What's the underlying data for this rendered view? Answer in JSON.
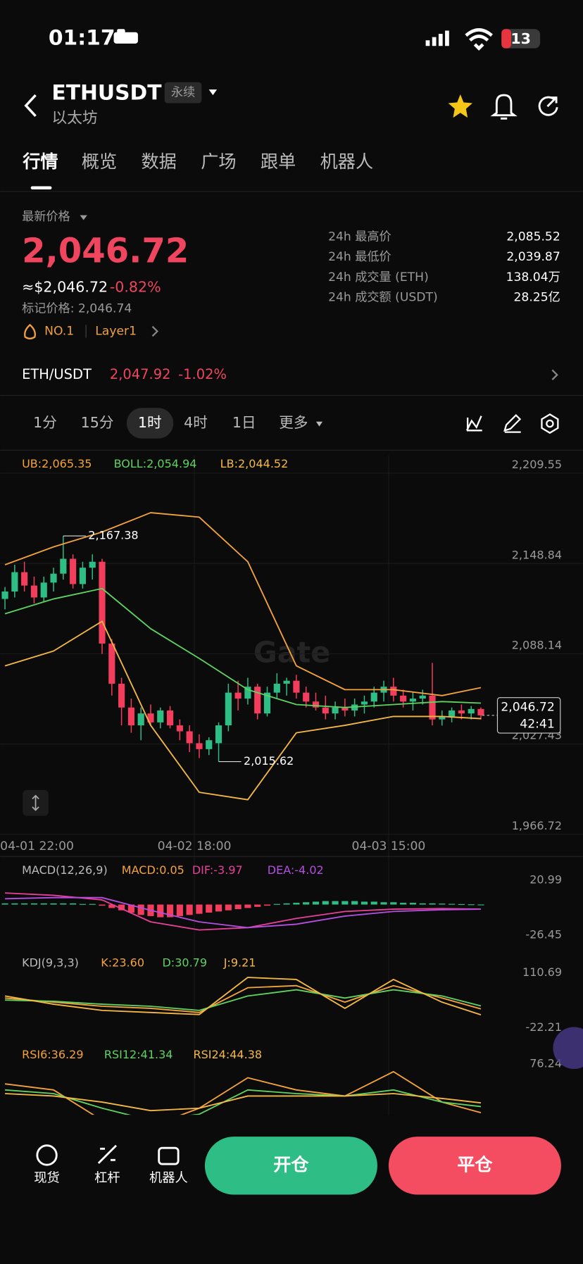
{
  "status": {
    "time": "01:17",
    "battery": "13"
  },
  "header": {
    "symbol": "ETHUSDT",
    "tag": "永续",
    "name": "以太坊"
  },
  "tabs": [
    "行情",
    "概览",
    "数据",
    "广场",
    "跟单",
    "机器人"
  ],
  "price": {
    "label": "最新价格",
    "last": "2,046.72",
    "usd": "≈$2,046.72",
    "change": "-0.82%",
    "mark": "标记价格: 2,046.74",
    "rank": "NO.1",
    "sector": "Layer1"
  },
  "stats": [
    {
      "label": "24h 最高价",
      "value": "2,085.52"
    },
    {
      "label": "24h 最低价",
      "value": "2,039.87"
    },
    {
      "label": "24h 成交量 (ETH)",
      "value": "138.04万"
    },
    {
      "label": "24h 成交额 (USDT)",
      "value": "28.25亿"
    }
  ],
  "spot": {
    "pair": "ETH/USDT",
    "price": "2,047.92",
    "change": "-1.02%"
  },
  "intervals": [
    "1分",
    "15分",
    "1时",
    "4时",
    "1日",
    "更多"
  ],
  "chart_data": {
    "type": "candlestick",
    "watermark": "Gate",
    "up_color": "#2ebd85",
    "down_color": "#f23d5c",
    "xlim": [
      0,
      60
    ],
    "xticks": [
      {
        "value": 0,
        "label": "04-01 22:00"
      },
      {
        "value": 20,
        "label": "04-02 18:00"
      },
      {
        "value": 40,
        "label": "04-03 15:00"
      }
    ],
    "ylim": [
      1966.72,
      2209.55
    ],
    "yticks": [
      {
        "value": 2209.55,
        "label": "2,209.55"
      },
      {
        "value": 2148.84,
        "label": "2,148.84"
      },
      {
        "value": 2088.14,
        "label": "2,088.14"
      },
      {
        "value": 2027.43,
        "label": "2,027.43"
      },
      {
        "value": 1966.72,
        "label": "1,966.72"
      }
    ],
    "grid": true,
    "candles": [
      [
        2125,
        2133,
        2118,
        2130
      ],
      [
        2130,
        2148,
        2126,
        2143
      ],
      [
        2143,
        2150,
        2130,
        2134
      ],
      [
        2134,
        2140,
        2122,
        2126
      ],
      [
        2126,
        2140,
        2123,
        2136
      ],
      [
        2136,
        2146,
        2130,
        2142
      ],
      [
        2142,
        2167.38,
        2138,
        2152
      ],
      [
        2152,
        2155,
        2132,
        2135
      ],
      [
        2135,
        2150,
        2132,
        2146
      ],
      [
        2146,
        2155,
        2138,
        2150
      ],
      [
        2150,
        2152,
        2088,
        2095
      ],
      [
        2095,
        2098,
        2060,
        2068
      ],
      [
        2068,
        2072,
        2040,
        2052
      ],
      [
        2052,
        2058,
        2035,
        2040
      ],
      [
        2040,
        2052,
        2030,
        2048
      ],
      [
        2048,
        2054,
        2040,
        2042
      ],
      [
        2042,
        2052,
        2038,
        2050
      ],
      [
        2050,
        2053,
        2038,
        2040
      ],
      [
        2040,
        2044,
        2030,
        2036
      ],
      [
        2036,
        2040,
        2022,
        2028
      ],
      [
        2028,
        2034,
        2018,
        2024
      ],
      [
        2024,
        2032,
        2020,
        2030
      ],
      [
        2028,
        2042,
        2015.62,
        2040
      ],
      [
        2040,
        2068,
        2036,
        2062
      ],
      [
        2062,
        2070,
        2050,
        2058
      ],
      [
        2058,
        2072,
        2054,
        2066
      ],
      [
        2066,
        2068,
        2044,
        2048
      ],
      [
        2048,
        2066,
        2046,
        2062
      ],
      [
        2062,
        2075,
        2058,
        2068
      ],
      [
        2068,
        2072,
        2060,
        2070
      ],
      [
        2070,
        2074,
        2058,
        2062
      ],
      [
        2062,
        2066,
        2052,
        2056
      ],
      [
        2056,
        2062,
        2050,
        2052
      ],
      [
        2052,
        2060,
        2044,
        2048
      ],
      [
        2048,
        2056,
        2044,
        2052
      ],
      [
        2052,
        2058,
        2046,
        2050
      ],
      [
        2050,
        2058,
        2046,
        2054
      ],
      [
        2054,
        2060,
        2048,
        2056
      ],
      [
        2056,
        2066,
        2052,
        2062
      ],
      [
        2062,
        2070,
        2056,
        2066
      ],
      [
        2066,
        2072,
        2056,
        2060
      ],
      [
        2060,
        2064,
        2052,
        2056
      ],
      [
        2056,
        2062,
        2050,
        2058
      ],
      [
        2058,
        2064,
        2054,
        2060
      ],
      [
        2060,
        2082,
        2040,
        2044
      ],
      [
        2044,
        2050,
        2039.87,
        2046
      ],
      [
        2046,
        2052,
        2042,
        2050
      ],
      [
        2050,
        2054,
        2044,
        2048
      ],
      [
        2048,
        2053,
        2044,
        2051
      ],
      [
        2051,
        2052,
        2044,
        2046.72
      ]
    ],
    "overlay_x": [
      0,
      5,
      10,
      15,
      20,
      25,
      30,
      35,
      40,
      45,
      49
    ],
    "overlays": [
      {
        "label": "UB:2,065.35",
        "color": "#f5a33a",
        "values": [
          2148,
          2160,
          2170,
          2183,
          2180,
          2150,
          2080,
          2064,
          2064,
          2060,
          2065.35
        ]
      },
      {
        "label": "BOLL:2,054.94",
        "color": "#5fd35f",
        "values": [
          2115,
          2125,
          2132,
          2105,
          2085,
          2064,
          2054,
          2052,
          2054,
          2056,
          2054.94
        ]
      },
      {
        "label": "LB:2,044.52",
        "color": "#f5b942",
        "values": [
          2080,
          2090,
          2110,
          2040,
          1995,
          1990,
          2035,
          2040,
          2046,
          2046,
          2044.52
        ]
      }
    ],
    "annotations": [
      {
        "candle": 6,
        "value": 2167.38,
        "label": "2,167.38"
      },
      {
        "candle": 22,
        "value": 2015.62,
        "label": "2,015.62"
      }
    ],
    "last_price": {
      "value": 2046.72,
      "label": "2,046.72",
      "countdown": "42:41"
    },
    "indicator_x": [
      0,
      5,
      10,
      15,
      20,
      25,
      30,
      35,
      40,
      45,
      49
    ],
    "indicators": [
      {
        "title": "MACD(12,26,9)",
        "ylim": [
          -26.45,
          20.99
        ],
        "yticks": [
          20.99,
          -26.45
        ],
        "histogram": {
          "label": "MACD:0.05",
          "color": "#f5a33a",
          "values": [
            1,
            1,
            1,
            1,
            1,
            1,
            1,
            1,
            0.5,
            0.5,
            -1,
            -3,
            -5,
            -7,
            -9,
            -10,
            -11,
            -11,
            -10,
            -9,
            -8,
            -7,
            -6,
            -5,
            -4,
            -3,
            -2,
            -1,
            0.5,
            1,
            1.5,
            2,
            2.5,
            3,
            3,
            3,
            3,
            2.5,
            2.5,
            2,
            2,
            1.5,
            1.5,
            1,
            1,
            0.8,
            0.6,
            0.4,
            0.2,
            0.05
          ]
        },
        "series": [
          {
            "label": "DIF:-3.97",
            "color": "#e8409a",
            "values": [
              10,
              8,
              4,
              -15,
              -22,
              -20,
              -12,
              -6,
              -4,
              -3.5,
              -3.97
            ]
          },
          {
            "label": "DEA:-4.02",
            "color": "#b44ee0",
            "values": [
              5,
              6,
              6,
              -5,
              -15,
              -20,
              -17,
              -10,
              -6,
              -4.5,
              -4.02
            ]
          }
        ]
      },
      {
        "title": "KDJ(9,3,3)",
        "ylim": [
          -22.21,
          110.69
        ],
        "yticks": [
          110.69,
          -22.21
        ],
        "series": [
          {
            "label": "K:23.60",
            "color": "#f5a33a",
            "values": [
              50,
              40,
              30,
              25,
              15,
              75,
              80,
              40,
              80,
              50,
              23.6
            ]
          },
          {
            "label": "D:30.79",
            "color": "#5fd35f",
            "values": [
              45,
              42,
              35,
              30,
              20,
              55,
              70,
              50,
              70,
              55,
              30.79
            ]
          },
          {
            "label": "J:9.21",
            "color": "#f5b942",
            "values": [
              55,
              35,
              20,
              15,
              10,
              100,
              95,
              25,
              95,
              40,
              9.21
            ]
          }
        ]
      },
      {
        "title": null,
        "ylim": [
          10,
          76.24
        ],
        "yticks": [
          76.24
        ],
        "series": [
          {
            "label": "RSI6:36.29",
            "color": "#f5a33a",
            "values": [
              60,
              55,
              30,
              25,
              40,
              65,
              55,
              50,
              70,
              45,
              36.29
            ]
          },
          {
            "label": "RSI12:41.34",
            "color": "#5fd35f",
            "values": [
              55,
              52,
              40,
              30,
              35,
              55,
              52,
              50,
              55,
              45,
              41.34
            ]
          },
          {
            "label": "RSI24:44.38",
            "color": "#f5b942",
            "values": [
              52,
              50,
              45,
              38,
              40,
              50,
              50,
              50,
              52,
              48,
              44.38
            ]
          }
        ]
      }
    ]
  },
  "bottom": {
    "nav": [
      "现货",
      "杠杆",
      "机器人"
    ],
    "open": "开仓",
    "close": "平仓"
  }
}
